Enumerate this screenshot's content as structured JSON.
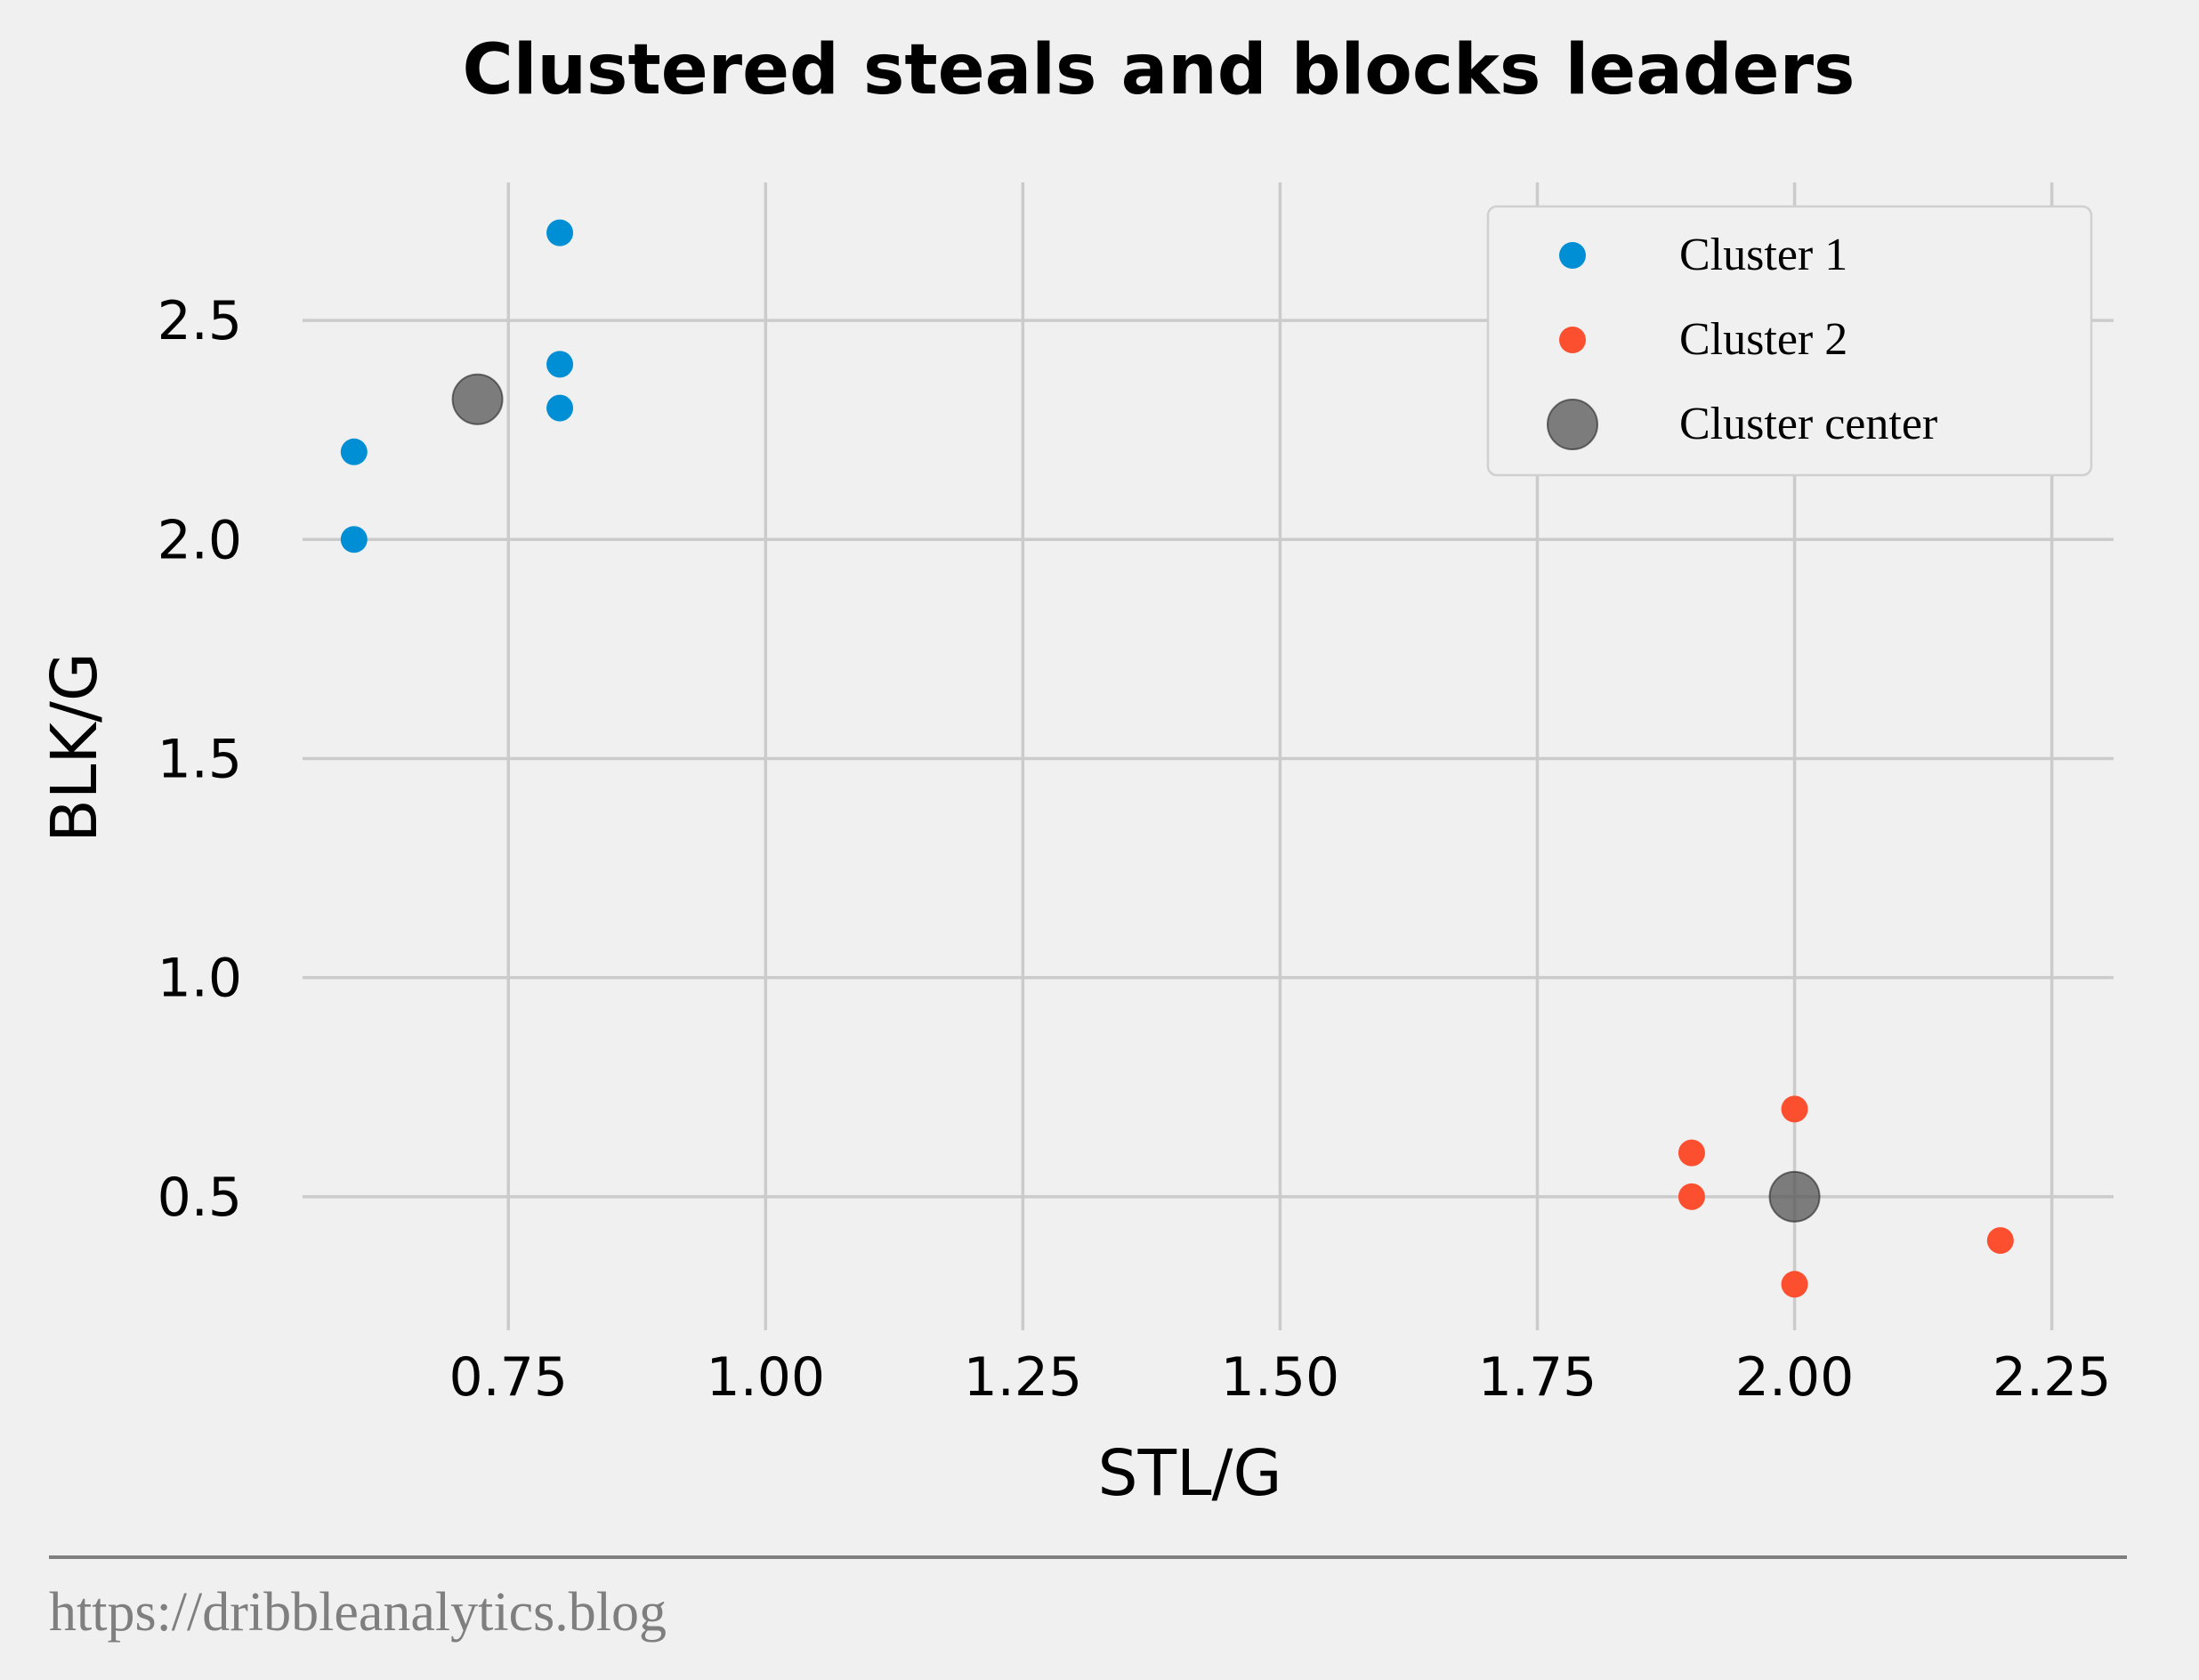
{
  "chart_data": {
    "type": "scatter",
    "title": "Clustered steals and blocks leaders",
    "xlabel": "STL/G",
    "ylabel": "BLK/G",
    "xlim": [
      0.55,
      2.31
    ],
    "ylim": [
      0.195,
      2.815
    ],
    "xticks": [
      0.75,
      1.0,
      1.25,
      1.5,
      1.75,
      2.0,
      2.25
    ],
    "xtick_labels": [
      "0.75",
      "1.00",
      "1.25",
      "1.50",
      "1.75",
      "2.00",
      "2.25"
    ],
    "yticks": [
      0.5,
      1.0,
      1.5,
      2.0,
      2.5
    ],
    "ytick_labels": [
      "0.5",
      "1.0",
      "1.5",
      "2.0",
      "2.5"
    ],
    "grid": true,
    "legend_position": "top-right",
    "series": [
      {
        "name": "Cluster 1",
        "color": "#008fd5",
        "marker": "small-circle",
        "points": [
          [
            0.6,
            2.2
          ],
          [
            0.6,
            2.0
          ],
          [
            0.8,
            2.7
          ],
          [
            0.8,
            2.4
          ],
          [
            0.8,
            2.3
          ]
        ]
      },
      {
        "name": "Cluster 2",
        "color": "#fc4f30",
        "marker": "small-circle",
        "points": [
          [
            1.9,
            0.6
          ],
          [
            1.9,
            0.5
          ],
          [
            2.0,
            0.7
          ],
          [
            2.0,
            0.3
          ],
          [
            2.2,
            0.4
          ]
        ]
      },
      {
        "name": "Cluster center",
        "color": "#555555",
        "marker": "large-circle",
        "points": [
          [
            0.72,
            2.32
          ],
          [
            2.0,
            0.5
          ]
        ]
      }
    ]
  },
  "footer": {
    "source": "https://dribbleanalytics.blog"
  }
}
